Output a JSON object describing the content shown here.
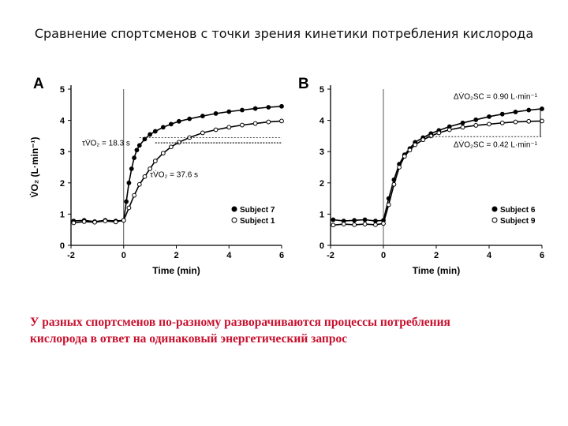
{
  "slide": {
    "title": "Сравнение спортсменов с точки зрения кинетики потребления кислорода",
    "caption_line1": "У разных спортсменов по-разному разворачиваются процессы потребления",
    "caption_line2": "кислорода в ответ на одинаковый энергетический запрос"
  },
  "chart_data": [
    {
      "type": "scatter",
      "panel_label": "A",
      "xlabel": "Time (min)",
      "ylabel": "V̇O₂ (L·min⁻¹)",
      "xlim": [
        -2,
        6
      ],
      "ylim": [
        0,
        5
      ],
      "xticks": [
        "-2",
        "0",
        "2",
        "4",
        "6"
      ],
      "yticks": [
        "0",
        "1",
        "2",
        "3",
        "4",
        "5"
      ],
      "legend_position": "bottom-right",
      "annotations": [
        "τV̇O₂ = 18.3 s",
        "τV̇O₂ = 37.6 s"
      ],
      "series": [
        {
          "name": "Subject 7",
          "marker": "filled",
          "color": "#000000",
          "x": [
            -1.9,
            -1.5,
            -1.1,
            -0.7,
            -0.3,
            0.0,
            0.1,
            0.2,
            0.3,
            0.4,
            0.5,
            0.6,
            0.8,
            1.0,
            1.2,
            1.5,
            1.8,
            2.1,
            2.5,
            3.0,
            3.5,
            4.0,
            4.5,
            5.0,
            5.5,
            6.0
          ],
          "y": [
            0.78,
            0.8,
            0.76,
            0.8,
            0.78,
            0.8,
            1.4,
            2.0,
            2.45,
            2.8,
            3.05,
            3.2,
            3.4,
            3.55,
            3.65,
            3.78,
            3.88,
            3.97,
            4.05,
            4.14,
            4.22,
            4.28,
            4.33,
            4.38,
            4.42,
            4.45
          ]
        },
        {
          "name": "Subject 1",
          "marker": "open",
          "color": "#000000",
          "x": [
            -1.9,
            -1.5,
            -1.1,
            -0.7,
            -0.3,
            0.0,
            0.2,
            0.4,
            0.6,
            0.8,
            1.0,
            1.2,
            1.5,
            1.8,
            2.1,
            2.5,
            3.0,
            3.5,
            4.0,
            4.5,
            5.0,
            5.5,
            6.0
          ],
          "y": [
            0.72,
            0.76,
            0.74,
            0.78,
            0.75,
            0.8,
            1.2,
            1.6,
            1.95,
            2.2,
            2.45,
            2.7,
            2.95,
            3.15,
            3.3,
            3.45,
            3.6,
            3.7,
            3.78,
            3.85,
            3.9,
            3.95,
            3.98
          ]
        }
      ]
    },
    {
      "type": "scatter",
      "panel_label": "B",
      "xlabel": "Time (min)",
      "ylabel": "",
      "xlim": [
        -2,
        6
      ],
      "ylim": [
        0,
        5
      ],
      "xticks": [
        "-2",
        "0",
        "2",
        "4",
        "6"
      ],
      "yticks": [
        "0",
        "1",
        "2",
        "3",
        "4",
        "5"
      ],
      "legend_position": "bottom-right",
      "annotations": [
        "ΔV̇O₂SC = 0.90 L·min⁻¹",
        "ΔV̇O₂SC = 0.42 L·min⁻¹"
      ],
      "series": [
        {
          "name": "Subject 6",
          "marker": "filled",
          "color": "#000000",
          "x": [
            -1.9,
            -1.5,
            -1.1,
            -0.7,
            -0.3,
            0.0,
            0.2,
            0.4,
            0.6,
            0.8,
            1.0,
            1.2,
            1.5,
            1.8,
            2.1,
            2.5,
            3.0,
            3.5,
            4.0,
            4.5,
            5.0,
            5.5,
            6.0
          ],
          "y": [
            0.82,
            0.78,
            0.8,
            0.82,
            0.78,
            0.8,
            1.5,
            2.1,
            2.6,
            2.9,
            3.1,
            3.3,
            3.45,
            3.58,
            3.68,
            3.8,
            3.92,
            4.02,
            4.12,
            4.2,
            4.27,
            4.33,
            4.37
          ]
        },
        {
          "name": "Subject 9",
          "marker": "open",
          "color": "#000000",
          "x": [
            -1.9,
            -1.5,
            -1.1,
            -0.7,
            -0.3,
            0.0,
            0.2,
            0.4,
            0.6,
            0.8,
            1.0,
            1.2,
            1.5,
            1.8,
            2.1,
            2.5,
            3.0,
            3.5,
            4.0,
            4.5,
            5.0,
            5.5,
            6.0
          ],
          "y": [
            0.65,
            0.68,
            0.66,
            0.68,
            0.66,
            0.7,
            1.3,
            1.95,
            2.5,
            2.85,
            3.05,
            3.22,
            3.38,
            3.5,
            3.6,
            3.7,
            3.78,
            3.84,
            3.88,
            3.92,
            3.95,
            3.97,
            3.98
          ]
        }
      ]
    }
  ]
}
